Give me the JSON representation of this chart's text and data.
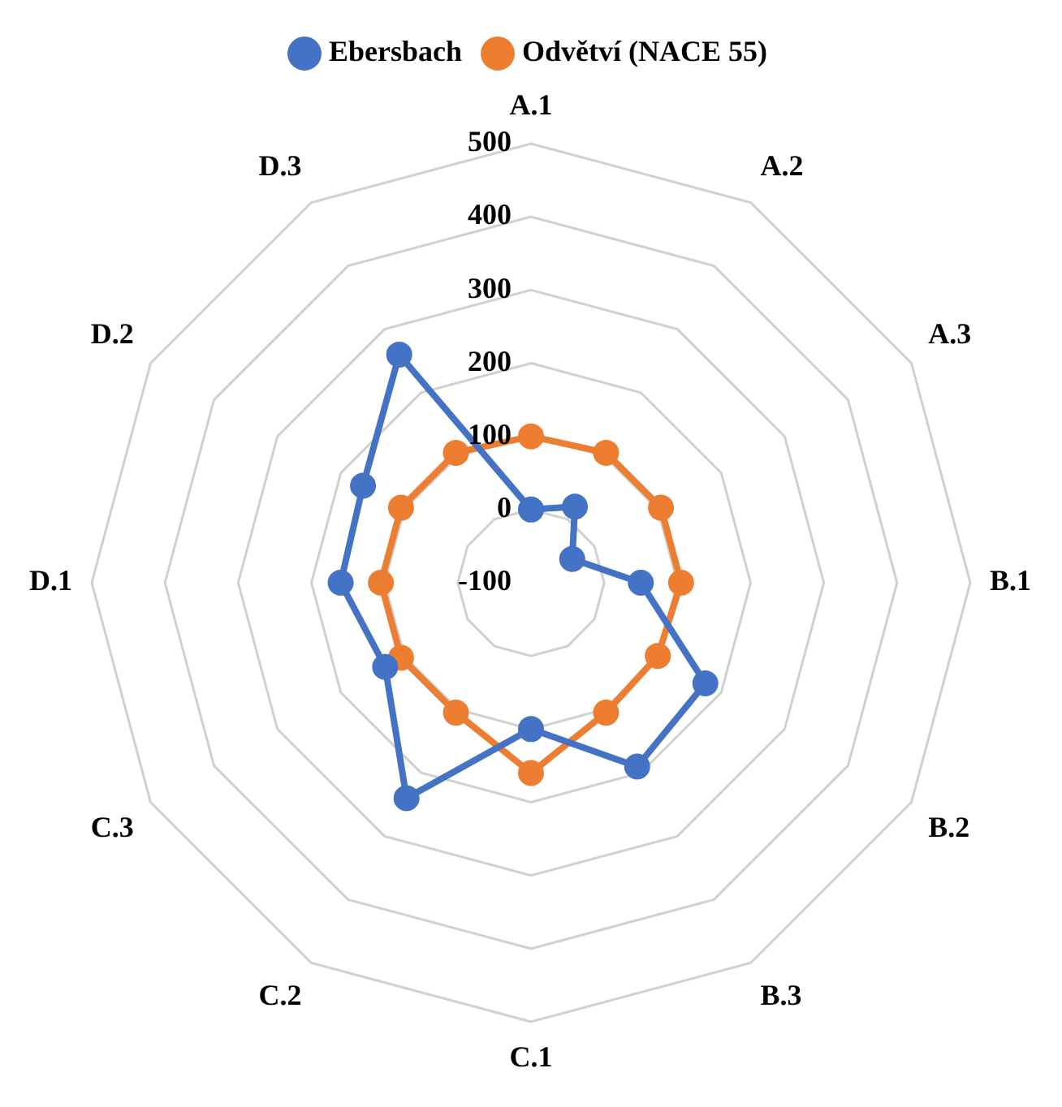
{
  "chart_data": {
    "type": "radar",
    "categories": [
      "A.1",
      "A.2",
      "A.3",
      "B.1",
      "B.2",
      "B.3",
      "C.1",
      "C.2",
      "C.3",
      "D.1",
      "D.2",
      "D.3"
    ],
    "series": [
      {
        "name": "Ebersbach",
        "color": "#4472c4",
        "values": [
          0,
          20,
          -35,
          50,
          175,
          190,
          100,
          240,
          130,
          160,
          165,
          260
        ]
      },
      {
        "name": "Odvětví (NACE 55)",
        "color": "#ed7d31",
        "values": [
          100,
          105,
          105,
          105,
          100,
          105,
          160,
          105,
          105,
          105,
          105,
          105
        ]
      }
    ],
    "ylim": [
      -100,
      500
    ],
    "yticks": [
      -100,
      0,
      100,
      200,
      300,
      400,
      500
    ],
    "grid": true,
    "legend": "top",
    "marker": "circle"
  }
}
